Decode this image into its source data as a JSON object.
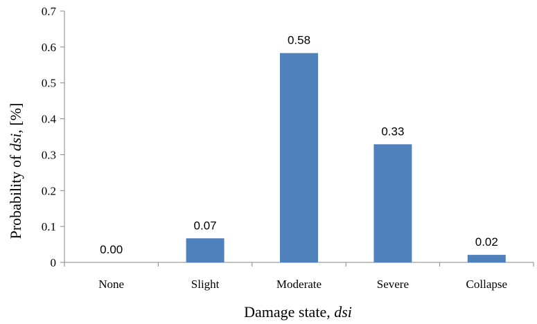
{
  "chart_data": {
    "type": "bar",
    "categories": [
      "None",
      "Slight",
      "Moderate",
      "Severe",
      "Collapse"
    ],
    "values": [
      0.0,
      0.067,
      0.583,
      0.329,
      0.021
    ],
    "data_labels": [
      "0.00",
      "0.07",
      "0.58",
      "0.33",
      "0.02"
    ],
    "ylim": [
      0,
      0.7
    ],
    "yticks": [
      0,
      0.1,
      0.2,
      0.3,
      0.4,
      0.5,
      0.6,
      0.7
    ],
    "ytick_labels": [
      "0",
      "0.1",
      "0.2",
      "0.3",
      "0.4",
      "0.5",
      "0.6",
      "0.7"
    ],
    "xlabel": {
      "prefix": "Damage state, ",
      "var": "dsi"
    },
    "ylabel": {
      "prefix": "Probability of ",
      "var": "dsi",
      "suffix": ", [%]"
    },
    "grid": false,
    "bar_color": "#4f81bd",
    "axis_color": "#868686"
  }
}
